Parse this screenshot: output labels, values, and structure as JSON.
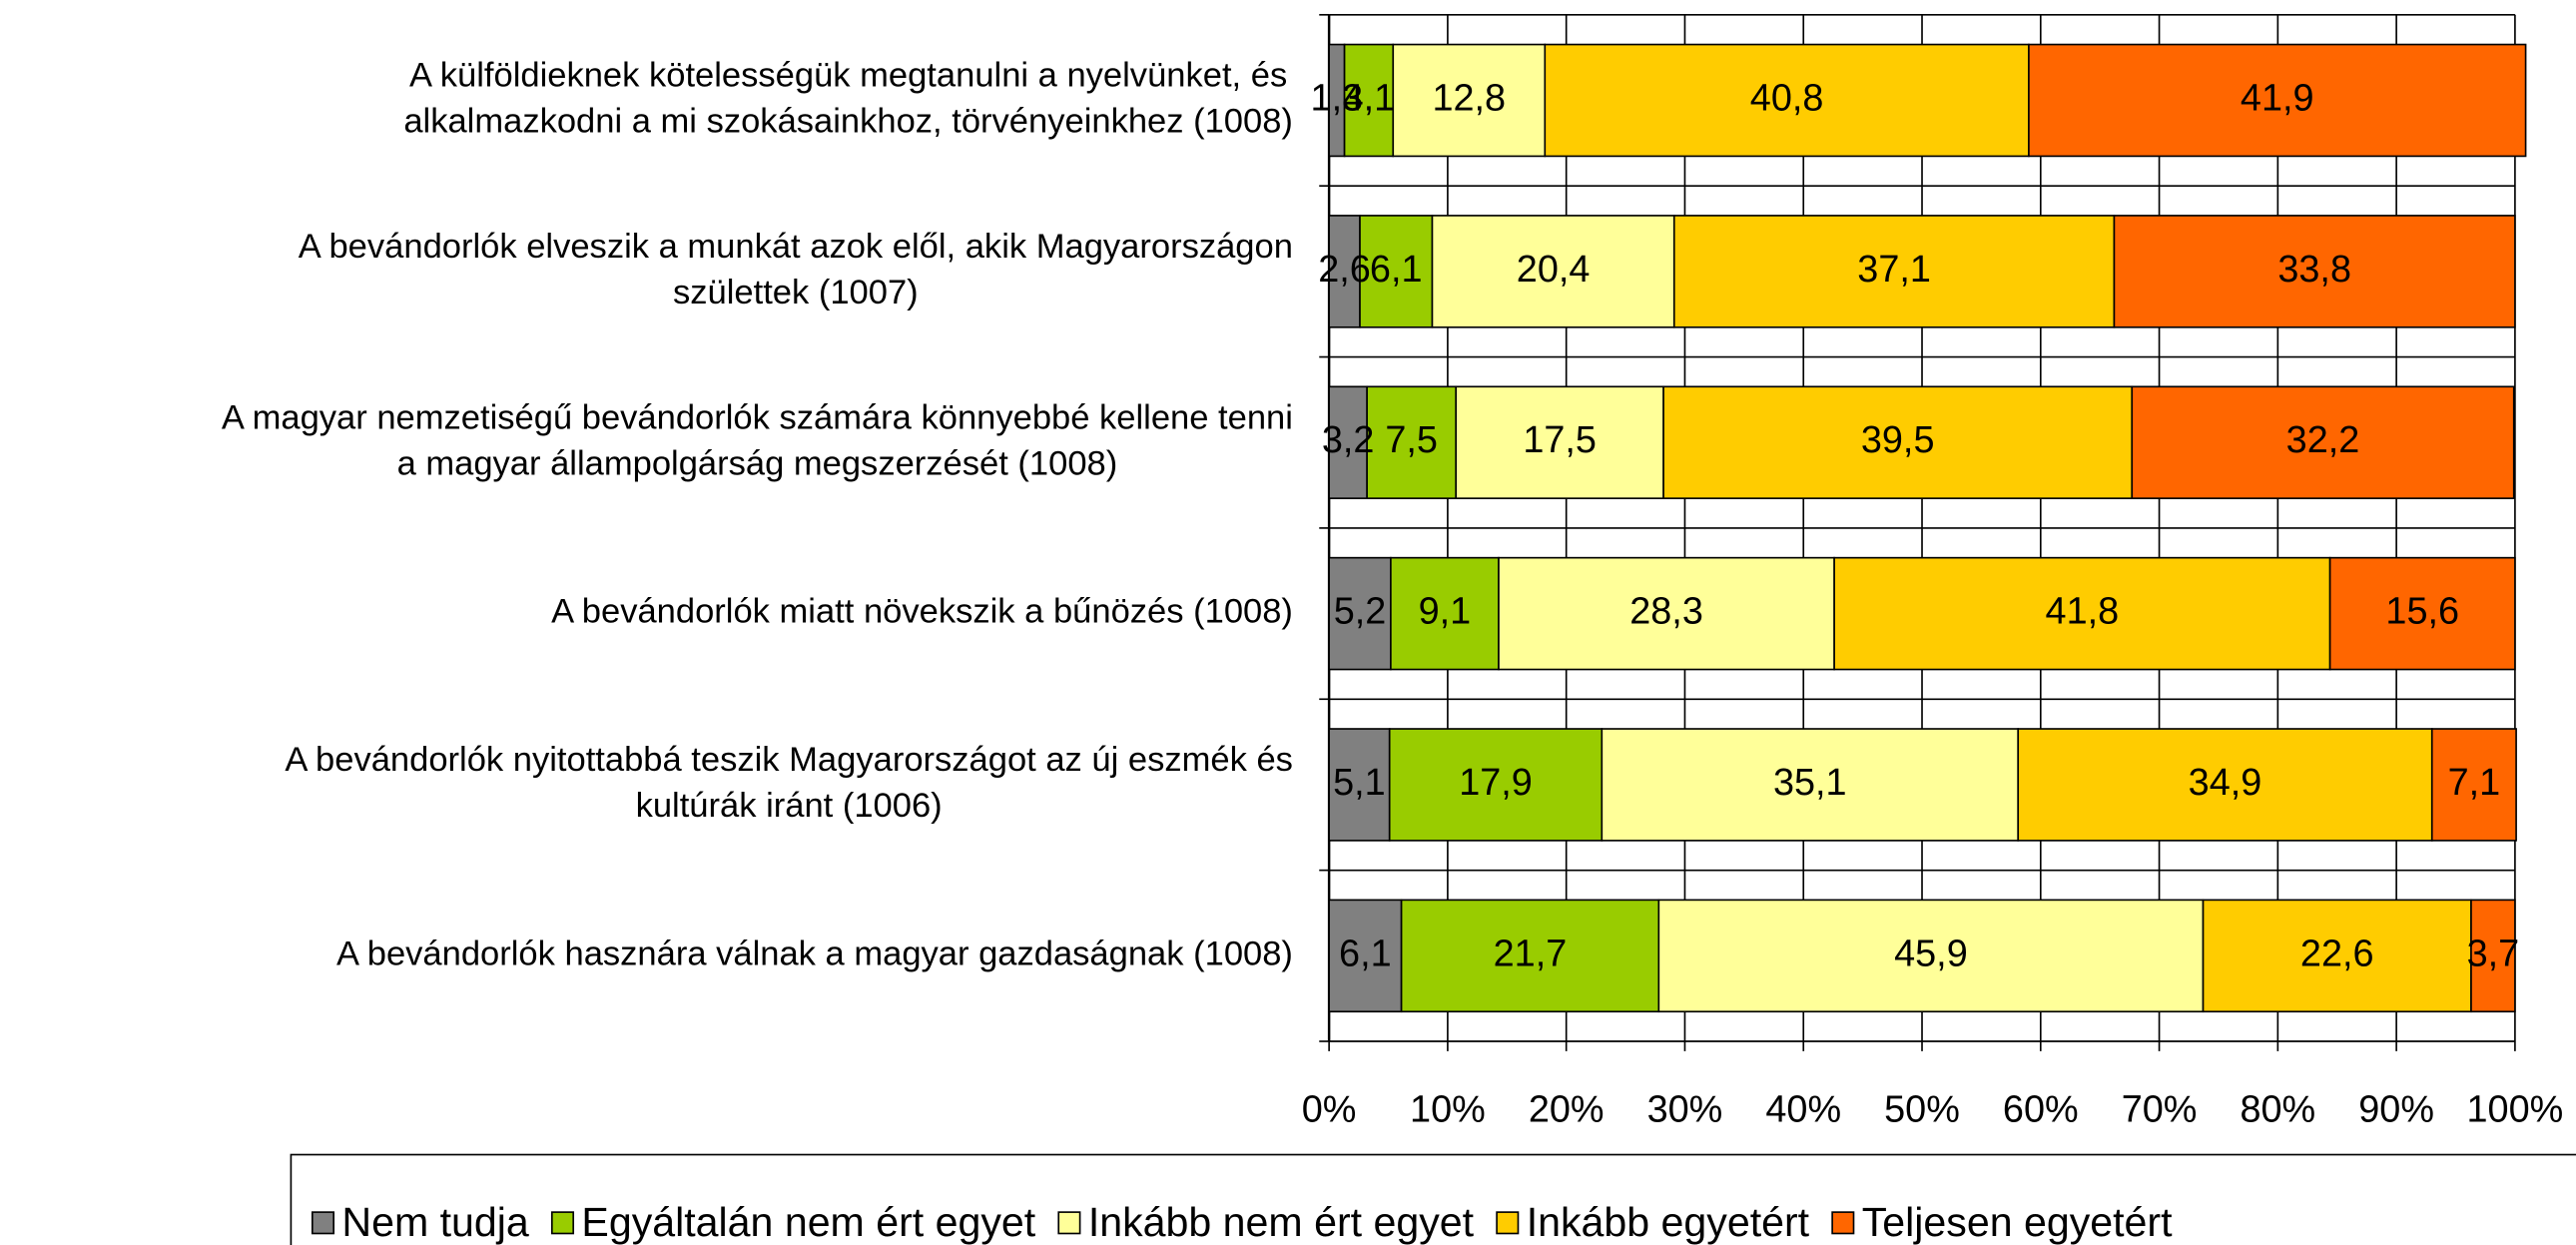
{
  "chart_data": {
    "type": "stacked_bar_horizontal",
    "categories": [
      [
        "A külföldieknek kötelességük megtanulni a nyelvünket, és",
        "alkalmazkodni a mi szokásainkhoz, törvényeinkhez (1008)"
      ],
      [
        "A bevándorlók elveszik a munkát azok elől, akik Magyarországon",
        "születtek (1007)"
      ],
      [
        "A magyar nemzetiségű bevándorlók számára könnyebbé kellene tenni",
        "a magyar állampolgárság megszerzését (1008)"
      ],
      [
        "A bevándorlók miatt növekszik a bűnözés (1008)"
      ],
      [
        "A bevándorlók nyitottabbá teszik Magyarországot az új eszmék és",
        "kultúrák iránt (1006)"
      ],
      [
        "A bevándorlók hasznára válnak a magyar gazdaságnak (1008)"
      ]
    ],
    "series": [
      {
        "name": "Nem tudja",
        "color": "#808080",
        "values": [
          1.3,
          2.6,
          3.2,
          5.2,
          5.1,
          6.1
        ],
        "value_labels": [
          "1,3",
          "2,6",
          "3,2",
          "5,2",
          "5,1",
          "6,1"
        ]
      },
      {
        "name": "Egyáltalán nem ért egyet",
        "color": "#99cc00",
        "values": [
          4.1,
          6.1,
          7.5,
          9.1,
          17.9,
          21.7
        ],
        "value_labels": [
          "4,1",
          "6,1",
          "7,5",
          "9,1",
          "17,9",
          "21,7"
        ]
      },
      {
        "name": "Inkább nem ért egyet",
        "color": "#ffff99",
        "values": [
          12.8,
          20.4,
          17.5,
          28.3,
          35.1,
          45.9
        ],
        "value_labels": [
          "12,8",
          "20,4",
          "17,5",
          "28,3",
          "35,1",
          "45,9"
        ]
      },
      {
        "name": "Inkább egyetért",
        "color": "#ffcc00",
        "values": [
          40.8,
          37.1,
          39.5,
          41.8,
          34.9,
          22.6
        ],
        "value_labels": [
          "40,8",
          "37,1",
          "39,5",
          "41,8",
          "34,9",
          "22,6"
        ]
      },
      {
        "name": "Teljesen egyetért",
        "color": "#ff6600",
        "values": [
          41.9,
          33.8,
          32.2,
          15.6,
          7.1,
          3.7
        ],
        "value_labels": [
          "41,9",
          "33,8",
          "32,2",
          "15,6",
          "7,1",
          "3,7"
        ]
      }
    ],
    "xlim": [
      0,
      100
    ],
    "xticks": [
      {
        "value": 0,
        "label": "0%"
      },
      {
        "value": 10,
        "label": "10%"
      },
      {
        "value": 20,
        "label": "20%"
      },
      {
        "value": 30,
        "label": "30%"
      },
      {
        "value": 40,
        "label": "40%"
      },
      {
        "value": 50,
        "label": "50%"
      },
      {
        "value": 60,
        "label": "60%"
      },
      {
        "value": 70,
        "label": "70%"
      },
      {
        "value": 80,
        "label": "80%"
      },
      {
        "value": 90,
        "label": "90%"
      },
      {
        "value": 100,
        "label": "100%"
      }
    ],
    "grid": true,
    "legend": "bottom"
  }
}
